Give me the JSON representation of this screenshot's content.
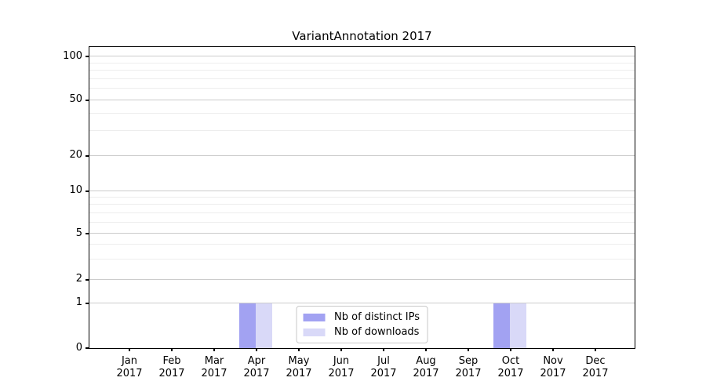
{
  "chart_data": {
    "type": "bar",
    "title": "VariantAnnotation 2017",
    "xlabels": [
      {
        "month": "Jan",
        "year": "2017"
      },
      {
        "month": "Feb",
        "year": "2017"
      },
      {
        "month": "Mar",
        "year": "2017"
      },
      {
        "month": "Apr",
        "year": "2017"
      },
      {
        "month": "May",
        "year": "2017"
      },
      {
        "month": "Jun",
        "year": "2017"
      },
      {
        "month": "Jul",
        "year": "2017"
      },
      {
        "month": "Aug",
        "year": "2017"
      },
      {
        "month": "Sep",
        "year": "2017"
      },
      {
        "month": "Oct",
        "year": "2017"
      },
      {
        "month": "Nov",
        "year": "2017"
      },
      {
        "month": "Dec",
        "year": "2017"
      }
    ],
    "series": [
      {
        "name": "Nb of distinct IPs",
        "color": "#a2a2f2",
        "values": [
          0,
          0,
          0,
          1,
          0,
          0,
          0,
          0,
          0,
          1,
          0,
          0
        ]
      },
      {
        "name": "Nb of downloads",
        "color": "#d9d9f8",
        "values": [
          0,
          0,
          0,
          1,
          0,
          0,
          0,
          0,
          0,
          1,
          0,
          0
        ]
      }
    ],
    "yticks": [
      0,
      1,
      2,
      5,
      10,
      20,
      50,
      100
    ],
    "yminor_gridlines": [
      3,
      4,
      6,
      7,
      8,
      9,
      30,
      40,
      60,
      70,
      80,
      90
    ],
    "ylim": [
      0,
      110
    ],
    "scale": "log-like",
    "grid": "horizontal",
    "legend_position": "lower center",
    "colors": {
      "distinct_ips": "#a2a2f2",
      "downloads": "#d9d9f8",
      "grid_major": "#cccccc",
      "grid_minor": "#ededed",
      "spine": "#000000",
      "text": "#000000",
      "legend_border": "#c8c8c8",
      "background": "#ffffff"
    }
  }
}
